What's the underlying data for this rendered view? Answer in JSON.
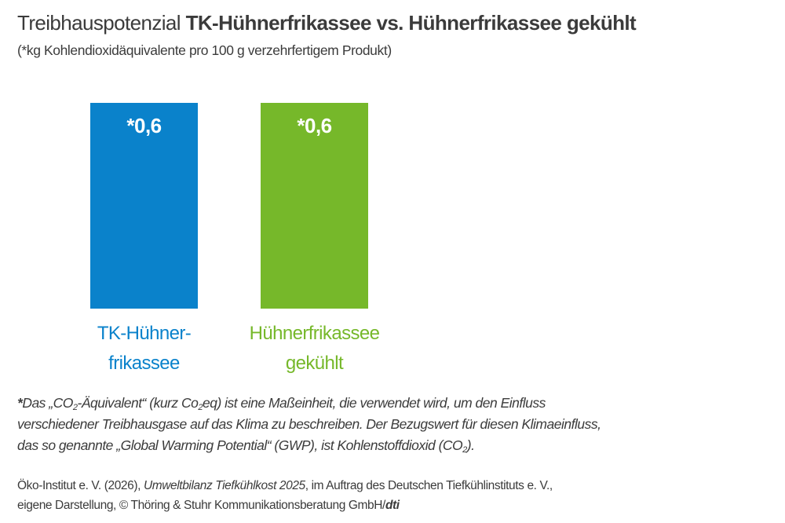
{
  "title": {
    "regular": "Treibhauspotenzial",
    "bold": "TK-Hühnerfrikassee vs. Hühnerfrikassee gekühlt"
  },
  "subtitle": "(*kg Kohlendioxidäquivalente pro 100 g verzehrfertigem Produkt)",
  "chart_data": {
    "type": "bar",
    "categories": [
      [
        "TK-Hühner-",
        "frikassee"
      ],
      [
        "Hühnerfrikassee",
        "gekühlt"
      ]
    ],
    "values": [
      0.6,
      0.6
    ],
    "data_labels": [
      "*0,6",
      "*0,6"
    ],
    "colors": [
      "#0a82cb",
      "#76b82a"
    ],
    "ylim": [
      0,
      0.6
    ],
    "grid": false,
    "legend": "none"
  },
  "footnote": {
    "star": "*",
    "l1a": "Das „CO",
    "l1sub": "2",
    "l1b": "-Äquivalent“ (kurz Co",
    "l1sub2": "2",
    "l1c": "eq) ist eine Maßeinheit, die verwendet wird, um den Einfluss",
    "l2": "verschiedener Treibhausgase auf das Klima zu beschreiben. Der Bezugswert für diesen Klimaeinfluss,",
    "l3a": "das so genannte „Global Warming Potential“ (GWP), ist Kohlenstoffdioxid (CO",
    "l3sub": "2",
    "l3b": ")."
  },
  "source": {
    "l1a": "Öko-Institut e. V. (2026), ",
    "l1it": "Umweltbilanz Tiefkühlkost 2025",
    "l1b": ", im Auftrag des Deutschen Tiefkühlinstituts e. V.,",
    "l2a": "eigene Darstellung, © Thöring & Stuhr Kommunikationsberatung GmbH/",
    "l2bi": "dti"
  }
}
